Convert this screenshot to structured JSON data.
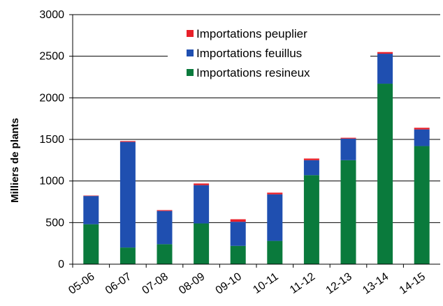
{
  "chart_data": {
    "type": "stacked-bar",
    "y_label": "Milliers de plants",
    "categories": [
      "05-06",
      "06-07",
      "07-08",
      "08-09",
      "09-10",
      "10-11",
      "11-12",
      "12-13",
      "13-14",
      "14-15"
    ],
    "series": [
      {
        "name": "Importations resineux",
        "color": "#0a7a3c",
        "values": [
          480,
          200,
          240,
          490,
          220,
          280,
          1070,
          1250,
          2170,
          1420
        ]
      },
      {
        "name": "Importations feuillus",
        "color": "#1f4fb0",
        "values": [
          340,
          1270,
          400,
          460,
          290,
          560,
          180,
          260,
          360,
          200
        ]
      },
      {
        "name": "Importations peuplier",
        "color": "#e8202a",
        "values": [
          5,
          10,
          10,
          20,
          30,
          20,
          20,
          10,
          20,
          20
        ]
      }
    ],
    "ylim": [
      0,
      3000
    ],
    "yticks": [
      0,
      500,
      1000,
      1500,
      2000,
      2500,
      3000
    ],
    "grid": true
  }
}
